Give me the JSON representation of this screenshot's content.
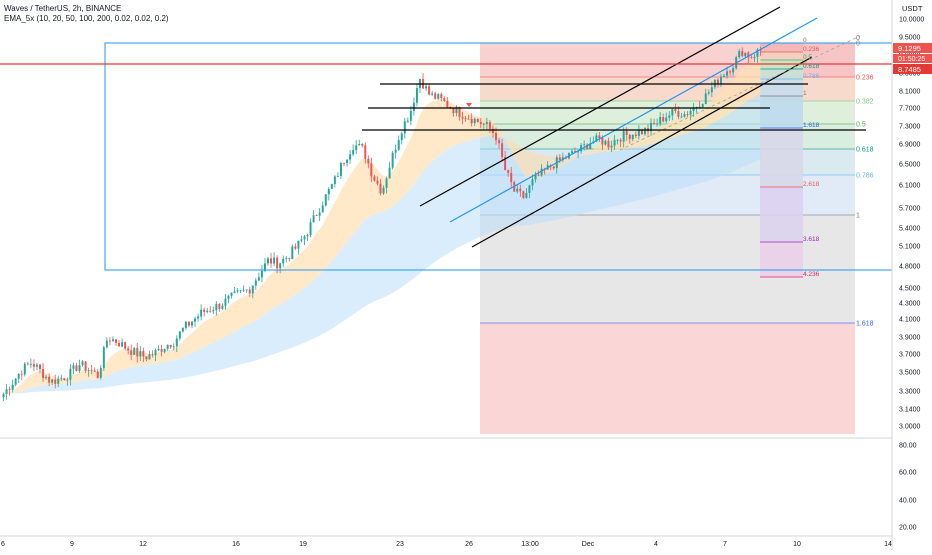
{
  "header": {
    "title": "Waves / TetherUS, 2h, BINANCE",
    "indicator": "EMA_5x (10, 20, 50, 100, 200, 0.02, 0.02, 0.2)"
  },
  "price_axis": {
    "currency": "USDT",
    "ticks": [
      "10.0000",
      "9.5000",
      "9.0000",
      "8.5000",
      "8.1000",
      "7.7000",
      "7.3000",
      "6.9000",
      "6.5000",
      "6.1000",
      "5.7000",
      "5.4000",
      "5.1000",
      "4.8000",
      "4.5000",
      "4.3000",
      "4.1000",
      "3.9000",
      "3.7000",
      "3.5000",
      "3.3000",
      "3.1400",
      "3.0000"
    ],
    "last_price": "9.1295",
    "countdown": "01:50:25",
    "line_price": "8.7485",
    "colors": {
      "last": "#ef5350",
      "line": "#e53935"
    }
  },
  "osc_axis": {
    "ticks": [
      "80.00",
      "60.00",
      "40.00",
      "20.00"
    ]
  },
  "time_axis": {
    "ticks": [
      "6",
      "9",
      "12",
      "16",
      "19",
      "23",
      "26",
      "13:00",
      "Dec",
      "4",
      "7",
      "10",
      "14"
    ]
  },
  "fib_levels": {
    "upper": [
      "0",
      "0.236",
      "0.382",
      "0.5",
      "0.618",
      "0.786",
      "1",
      "1.618"
    ],
    "upper_right": "0",
    "ext": [
      "0",
      "0.236",
      "0.382",
      "0.5",
      "0.618",
      "0.786",
      "1",
      "1.618",
      "2.618",
      "3.618",
      "4.236"
    ]
  },
  "colors": {
    "up": "#26a69a",
    "down": "#ef5350",
    "channel": "#000000",
    "blue_line": "#2196f3",
    "box": "#2196f3"
  },
  "chart_data": {
    "type": "candlestick",
    "symbol": "Waves / TetherUS",
    "interval": "2h",
    "exchange": "BINANCE",
    "ylim": [
      2.95,
      10.3
    ],
    "y_scale": "log",
    "key_levels": [
      7.2,
      7.65,
      8.05,
      8.7485
    ],
    "fib_anchor": {
      "high": 9.1295,
      "low": 5.65
    },
    "close_path": [
      3.3,
      3.42,
      3.55,
      3.62,
      3.52,
      3.42,
      3.45,
      3.5,
      3.6,
      3.55,
      3.48,
      3.9,
      3.85,
      3.78,
      3.72,
      3.68,
      3.72,
      3.8,
      3.85,
      4.0,
      4.1,
      4.2,
      4.25,
      4.3,
      4.38,
      4.45,
      4.5,
      4.7,
      4.9,
      4.85,
      4.95,
      5.1,
      5.3,
      5.6,
      5.9,
      6.2,
      6.6,
      6.9,
      6.8,
      6.3,
      6.0,
      6.6,
      7.2,
      7.6,
      8.4,
      8.0,
      7.9,
      7.75,
      7.6,
      7.5,
      7.4,
      7.3,
      7.1,
      6.4,
      6.0,
      5.9,
      6.2,
      6.35,
      6.5,
      6.6,
      6.7,
      6.8,
      6.95,
      7.0,
      6.9,
      7.05,
      7.1,
      7.15,
      7.2,
      7.35,
      7.5,
      7.6,
      7.55,
      7.7,
      7.9,
      8.2,
      8.5,
      8.7,
      9.1,
      8.95,
      9.13
    ]
  }
}
